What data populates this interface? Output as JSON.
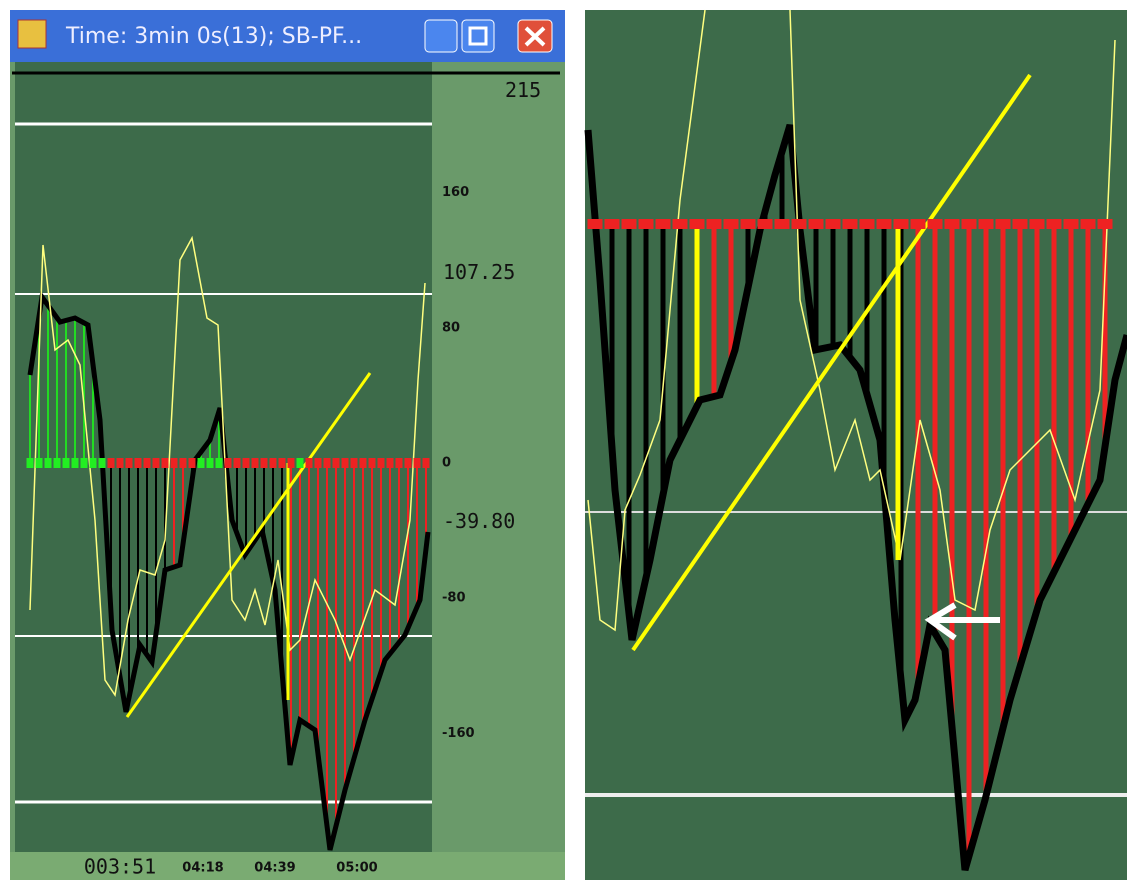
{
  "window": {
    "title": "Time: 3min 0s(13); SB-PF..."
  },
  "chart": {
    "yticks": [
      160,
      80,
      0,
      -80,
      -160
    ],
    "levels": [
      215,
      107.25,
      {
        "value": -39.8,
        "label": "-39.80"
      }
    ],
    "xlabels": [
      "003:51",
      "04:18",
      "04:39",
      "05:00"
    ]
  }
}
